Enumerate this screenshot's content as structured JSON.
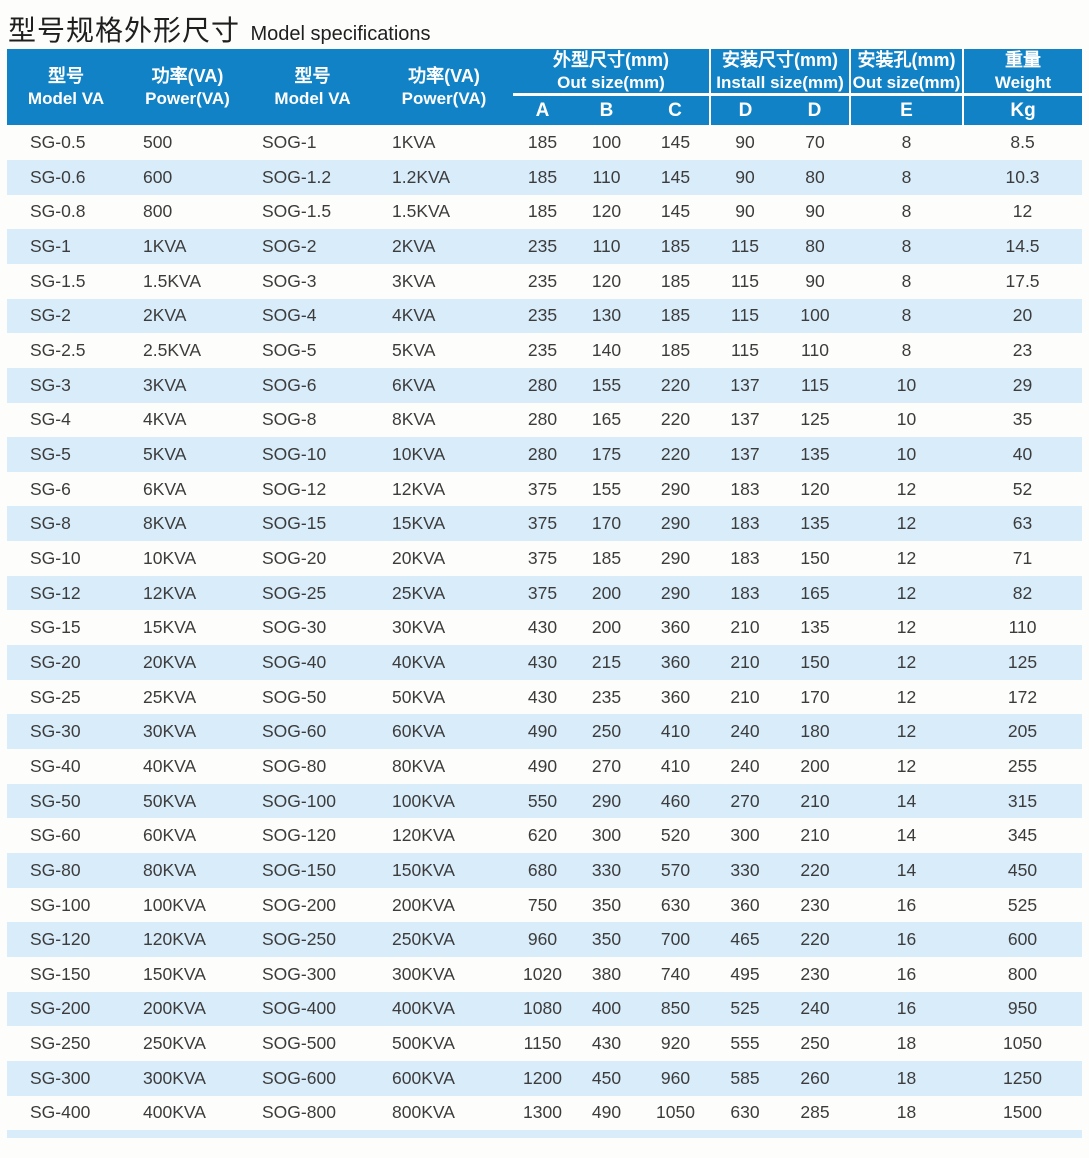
{
  "page": {
    "title_zh": "型号规格外形尺寸",
    "title_en": "Model specifications"
  },
  "colors": {
    "header_bg": "#1182c5",
    "row_alt": "#d9ecfa",
    "body_text": "#3c3c3c",
    "title_text": "#1f1f1f"
  },
  "table": {
    "header": {
      "col_model_1": {
        "zh": "型号",
        "en": "Model VA"
      },
      "col_power_1": {
        "zh": "功率(VA)",
        "en": "Power(VA)"
      },
      "col_model_2": {
        "zh": "型号",
        "en": "Model VA"
      },
      "col_power_2": {
        "zh": "功率(VA)",
        "en": "Power(VA)"
      },
      "group_out": {
        "zh": "外型尺寸(mm)",
        "en": "Out size(mm)",
        "subs": [
          "A",
          "B",
          "C"
        ]
      },
      "group_install": {
        "zh": "安装尺寸(mm)",
        "en": "Install size(mm)",
        "subs": [
          "D",
          "D"
        ]
      },
      "group_hole": {
        "zh": "安装孔(mm)",
        "en": "Out size(mm)",
        "subs": [
          "E"
        ]
      },
      "group_weight": {
        "zh": "重量",
        "en": "Weight",
        "subs": [
          "Kg"
        ]
      }
    },
    "rows": [
      [
        "SG-0.5",
        "500",
        "SOG-1",
        "1KVA",
        "185",
        "100",
        "145",
        "90",
        "70",
        "8",
        "8.5"
      ],
      [
        "SG-0.6",
        "600",
        "SOG-1.2",
        "1.2KVA",
        "185",
        "110",
        "145",
        "90",
        "80",
        "8",
        "10.3"
      ],
      [
        "SG-0.8",
        "800",
        "SOG-1.5",
        "1.5KVA",
        "185",
        "120",
        "145",
        "90",
        "90",
        "8",
        "12"
      ],
      [
        "SG-1",
        "1KVA",
        "SOG-2",
        "2KVA",
        "235",
        "110",
        "185",
        "115",
        "80",
        "8",
        "14.5"
      ],
      [
        "SG-1.5",
        "1.5KVA",
        "SOG-3",
        "3KVA",
        "235",
        "120",
        "185",
        "115",
        "90",
        "8",
        "17.5"
      ],
      [
        "SG-2",
        "2KVA",
        "SOG-4",
        "4KVA",
        "235",
        "130",
        "185",
        "115",
        "100",
        "8",
        "20"
      ],
      [
        "SG-2.5",
        "2.5KVA",
        "SOG-5",
        "5KVA",
        "235",
        "140",
        "185",
        "115",
        "110",
        "8",
        "23"
      ],
      [
        "SG-3",
        "3KVA",
        "SOG-6",
        "6KVA",
        "280",
        "155",
        "220",
        "137",
        "115",
        "10",
        "29"
      ],
      [
        "SG-4",
        "4KVA",
        "SOG-8",
        "8KVA",
        "280",
        "165",
        "220",
        "137",
        "125",
        "10",
        "35"
      ],
      [
        "SG-5",
        "5KVA",
        "SOG-10",
        "10KVA",
        "280",
        "175",
        "220",
        "137",
        "135",
        "10",
        "40"
      ],
      [
        "SG-6",
        "6KVA",
        "SOG-12",
        "12KVA",
        "375",
        "155",
        "290",
        "183",
        "120",
        "12",
        "52"
      ],
      [
        "SG-8",
        "8KVA",
        "SOG-15",
        "15KVA",
        "375",
        "170",
        "290",
        "183",
        "135",
        "12",
        "63"
      ],
      [
        "SG-10",
        "10KVA",
        "SOG-20",
        "20KVA",
        "375",
        "185",
        "290",
        "183",
        "150",
        "12",
        "71"
      ],
      [
        "SG-12",
        "12KVA",
        "SOG-25",
        "25KVA",
        "375",
        "200",
        "290",
        "183",
        "165",
        "12",
        "82"
      ],
      [
        "SG-15",
        "15KVA",
        "SOG-30",
        "30KVA",
        "430",
        "200",
        "360",
        "210",
        "135",
        "12",
        "110"
      ],
      [
        "SG-20",
        "20KVA",
        "SOG-40",
        "40KVA",
        "430",
        "215",
        "360",
        "210",
        "150",
        "12",
        "125"
      ],
      [
        "SG-25",
        "25KVA",
        "SOG-50",
        "50KVA",
        "430",
        "235",
        "360",
        "210",
        "170",
        "12",
        "172"
      ],
      [
        "SG-30",
        "30KVA",
        "SOG-60",
        "60KVA",
        "490",
        "250",
        "410",
        "240",
        "180",
        "12",
        "205"
      ],
      [
        "SG-40",
        "40KVA",
        "SOG-80",
        "80KVA",
        "490",
        "270",
        "410",
        "240",
        "200",
        "12",
        "255"
      ],
      [
        "SG-50",
        "50KVA",
        "SOG-100",
        "100KVA",
        "550",
        "290",
        "460",
        "270",
        "210",
        "14",
        "315"
      ],
      [
        "SG-60",
        "60KVA",
        "SOG-120",
        "120KVA",
        "620",
        "300",
        "520",
        "300",
        "210",
        "14",
        "345"
      ],
      [
        "SG-80",
        "80KVA",
        "SOG-150",
        "150KVA",
        "680",
        "330",
        "570",
        "330",
        "220",
        "14",
        "450"
      ],
      [
        "SG-100",
        "100KVA",
        "SOG-200",
        "200KVA",
        "750",
        "350",
        "630",
        "360",
        "230",
        "16",
        "525"
      ],
      [
        "SG-120",
        "120KVA",
        "SOG-250",
        "250KVA",
        "960",
        "350",
        "700",
        "465",
        "220",
        "16",
        "600"
      ],
      [
        "SG-150",
        "150KVA",
        "SOG-300",
        "300KVA",
        "1020",
        "380",
        "740",
        "495",
        "230",
        "16",
        "800"
      ],
      [
        "SG-200",
        "200KVA",
        "SOG-400",
        "400KVA",
        "1080",
        "400",
        "850",
        "525",
        "240",
        "16",
        "950"
      ],
      [
        "SG-250",
        "250KVA",
        "SOG-500",
        "500KVA",
        "1150",
        "430",
        "920",
        "555",
        "250",
        "18",
        "1050"
      ],
      [
        "SG-300",
        "300KVA",
        "SOG-600",
        "600KVA",
        "1200",
        "450",
        "960",
        "585",
        "260",
        "18",
        "1250"
      ],
      [
        "SG-400",
        "400KVA",
        "SOG-800",
        "800KVA",
        "1300",
        "490",
        "1050",
        "630",
        "285",
        "18",
        "1500"
      ]
    ]
  }
}
